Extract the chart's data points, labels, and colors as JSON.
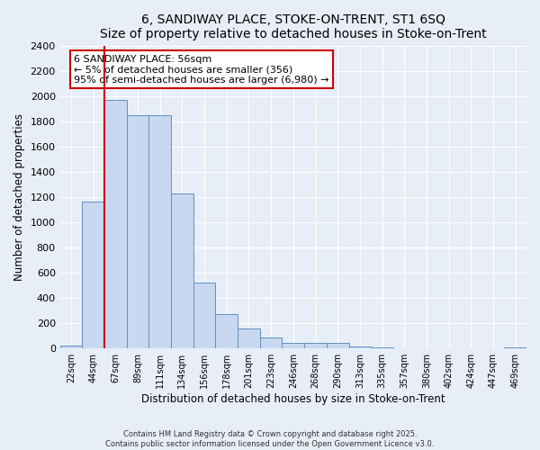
{
  "title": "6, SANDIWAY PLACE, STOKE-ON-TRENT, ST1 6SQ",
  "subtitle": "Size of property relative to detached houses in Stoke-on-Trent",
  "xlabel": "Distribution of detached houses by size in Stoke-on-Trent",
  "ylabel": "Number of detached properties",
  "categories": [
    "22sqm",
    "44sqm",
    "67sqm",
    "89sqm",
    "111sqm",
    "134sqm",
    "156sqm",
    "178sqm",
    "201sqm",
    "223sqm",
    "246sqm",
    "268sqm",
    "290sqm",
    "313sqm",
    "335sqm",
    "357sqm",
    "380sqm",
    "402sqm",
    "424sqm",
    "447sqm",
    "469sqm"
  ],
  "values": [
    25,
    1160,
    1970,
    1850,
    1850,
    1230,
    520,
    275,
    155,
    90,
    42,
    42,
    42,
    15,
    10,
    5,
    5,
    5,
    3,
    3,
    10
  ],
  "bar_color": "#c8d8f0",
  "bar_edge_color": "#6090c0",
  "vline_x": 1.5,
  "vline_color": "#cc0000",
  "annotation_title": "6 SANDIWAY PLACE: 56sqm",
  "annotation_line1": "← 5% of detached houses are smaller (356)",
  "annotation_line2": "95% of semi-detached houses are larger (6,980) →",
  "annotation_box_color": "#ffffff",
  "annotation_box_edge": "#cc0000",
  "ylim": [
    0,
    2400
  ],
  "yticks": [
    0,
    200,
    400,
    600,
    800,
    1000,
    1200,
    1400,
    1600,
    1800,
    2000,
    2200,
    2400
  ],
  "background_color": "#e8eef8",
  "grid_color": "#ffffff",
  "footer_line1": "Contains HM Land Registry data © Crown copyright and database right 2025.",
  "footer_line2": "Contains public sector information licensed under the Open Government Licence v3.0."
}
